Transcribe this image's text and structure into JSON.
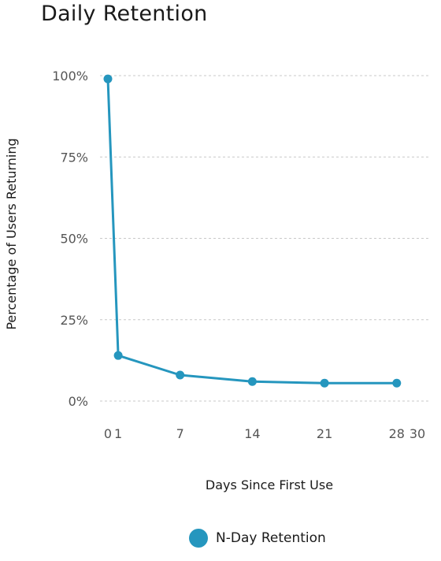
{
  "chart_data": {
    "type": "line",
    "title": "Daily Retention",
    "xlabel": "Days Since First Use",
    "ylabel": "Percentage of Users Returning",
    "xlim": [
      0,
      30
    ],
    "ylim": [
      0,
      100
    ],
    "x_ticks": [
      0,
      1,
      7,
      14,
      21,
      28,
      30
    ],
    "y_ticks": [
      0,
      25,
      50,
      75,
      100
    ],
    "y_tick_labels": [
      "0%",
      "25%",
      "50%",
      "75%",
      "100%"
    ],
    "grid": "horizontal dashed",
    "legend_position": "bottom-center",
    "series": [
      {
        "name": "N-Day Retention",
        "color": "#2596be",
        "x": [
          0,
          1,
          7,
          14,
          21,
          28
        ],
        "y": [
          99,
          14,
          8,
          6,
          5.5,
          5.5
        ]
      }
    ]
  }
}
